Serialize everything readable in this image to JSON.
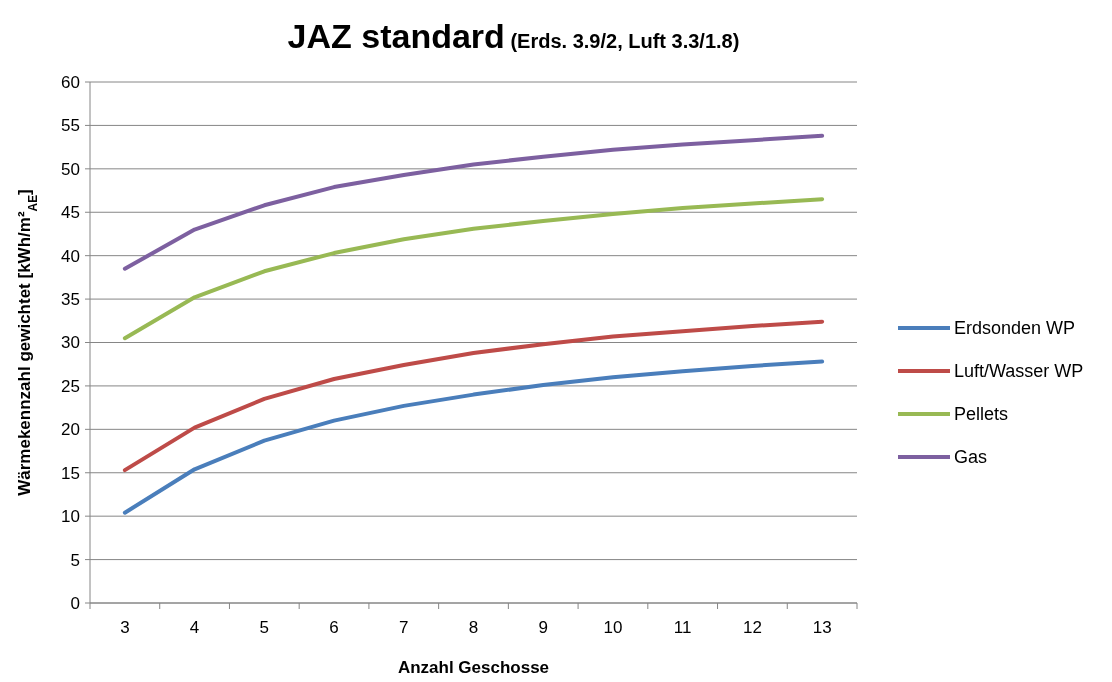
{
  "chart_data": {
    "type": "line",
    "title": "JAZ standard",
    "subtitle": "(Erds. 3.9/2, Luft 3.3/1.8)",
    "xlabel": "Anzahl Geschosse",
    "ylabel": "Wärmekennzahl gewichtet [kWh/m²$_{AE}$]",
    "categories": [
      "3",
      "4",
      "5",
      "6",
      "7",
      "8",
      "9",
      "10",
      "11",
      "12",
      "13"
    ],
    "series": [
      {
        "name": "Erdsonden WP",
        "color": "#4a7ebb",
        "values": [
          10.4,
          15.4,
          18.7,
          21.0,
          22.7,
          24.0,
          25.1,
          26.0,
          26.7,
          27.3,
          27.8
        ]
      },
      {
        "name": "Luft/Wasser WP",
        "color": "#be4b48",
        "values": [
          15.3,
          20.2,
          23.5,
          25.8,
          27.4,
          28.8,
          29.8,
          30.7,
          31.3,
          31.9,
          32.4
        ]
      },
      {
        "name": "Pellets",
        "color": "#98b954",
        "values": [
          30.5,
          35.2,
          38.2,
          40.3,
          41.9,
          43.1,
          44.0,
          44.8,
          45.5,
          46.0,
          46.5
        ]
      },
      {
        "name": "Gas",
        "color": "#7d60a0",
        "values": [
          38.5,
          43.0,
          45.8,
          47.9,
          49.3,
          50.5,
          51.4,
          52.2,
          52.8,
          53.3,
          53.8
        ]
      }
    ],
    "ylim": [
      0,
      60
    ],
    "yticks": [
      0,
      5,
      10,
      15,
      20,
      25,
      30,
      35,
      40,
      45,
      50,
      55,
      60
    ],
    "grid": "y",
    "legend": "right"
  }
}
